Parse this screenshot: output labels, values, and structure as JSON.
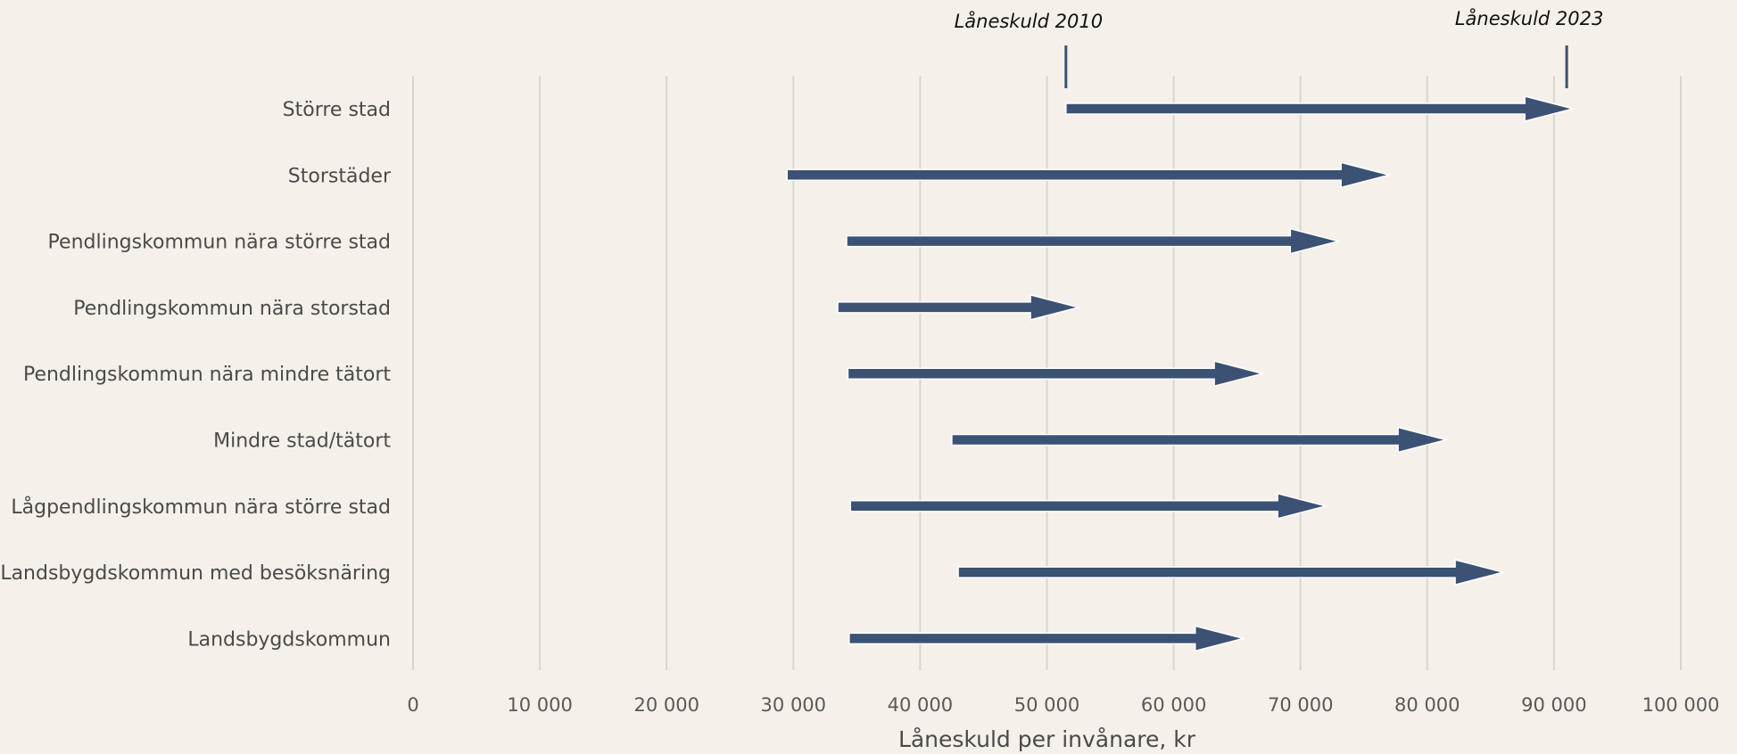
{
  "chart_data": {
    "type": "bar",
    "orientation": "horizontal",
    "style": "arrow-range",
    "categories": [
      "Större stad",
      "Storstäder",
      "Pendlingskommun nära större stad",
      "Pendlingskommun nära storstad",
      "Pendlingskommun nära mindre tätort",
      "Mindre stad/tätort",
      "Lågpendlingskommun nära större stad",
      "Landsbygdskommun med besöksnäring",
      "Landsbygdskommun"
    ],
    "series": [
      {
        "name": "Låneskuld 2010",
        "values": [
          51500,
          29500,
          34200,
          33500,
          34300,
          42500,
          34500,
          43000,
          34400
        ]
      },
      {
        "name": "Låneskuld 2023",
        "values": [
          91500,
          77000,
          73000,
          52500,
          67000,
          81500,
          72000,
          86000,
          65500
        ]
      }
    ],
    "xlabel": "Låneskuld per invånare, kr",
    "xlim": [
      0,
      100000
    ],
    "xticks": [
      0,
      10000,
      20000,
      30000,
      40000,
      50000,
      60000,
      70000,
      80000,
      90000,
      100000
    ],
    "xtick_labels": [
      "0",
      "10 000",
      "20 000",
      "30 000",
      "40 000",
      "50 000",
      "60 000",
      "70 000",
      "80 000",
      "90 000",
      "100 000"
    ],
    "grid": true,
    "legend": "annotations-top",
    "annotations": [
      {
        "text": "Låneskuld 2010",
        "x": 51500
      },
      {
        "text": "Låneskuld 2023",
        "x": 91000
      }
    ],
    "colors": {
      "arrow": "#3b5275",
      "background": "#f5f1ea",
      "grid": "#d9d6d0"
    }
  }
}
